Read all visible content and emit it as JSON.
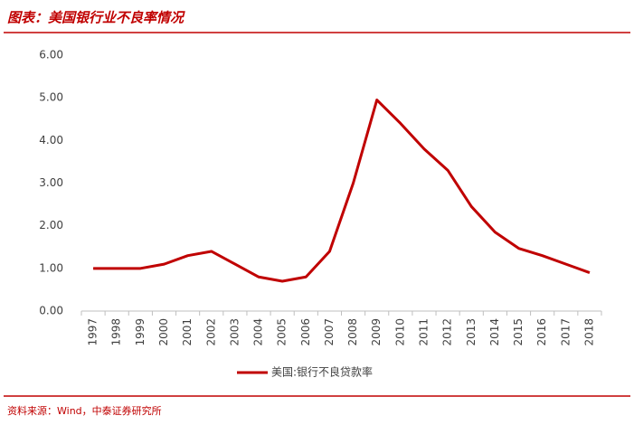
{
  "chart_data": {
    "type": "line",
    "title": "图表：美国银行业不良率情况",
    "source": "资料来源：Wind，中泰证券研究所",
    "categories": [
      "1997",
      "1998",
      "1999",
      "2000",
      "2001",
      "2002",
      "2003",
      "2004",
      "2005",
      "2006",
      "2007",
      "2008",
      "2009",
      "2010",
      "2011",
      "2012",
      "2013",
      "2014",
      "2015",
      "2016",
      "2017",
      "2018"
    ],
    "series": [
      {
        "name": "美国:银行不良贷款率",
        "color": "#c00000",
        "values": [
          1.0,
          1.0,
          1.0,
          1.1,
          1.3,
          1.4,
          1.1,
          0.8,
          0.7,
          0.8,
          1.4,
          3.0,
          4.95,
          4.4,
          3.8,
          3.3,
          2.45,
          1.85,
          1.47,
          1.3,
          1.1,
          0.9
        ]
      }
    ],
    "ylim": [
      0,
      6
    ],
    "yticks": [
      {
        "value": 0,
        "label": "0.00"
      },
      {
        "value": 1,
        "label": "1.00"
      },
      {
        "value": 2,
        "label": "2.00"
      },
      {
        "value": 3,
        "label": "3.00"
      },
      {
        "value": 4,
        "label": "4.00"
      },
      {
        "value": 5,
        "label": "5.00"
      },
      {
        "value": 6,
        "label": "6.00"
      }
    ],
    "grid": false
  }
}
